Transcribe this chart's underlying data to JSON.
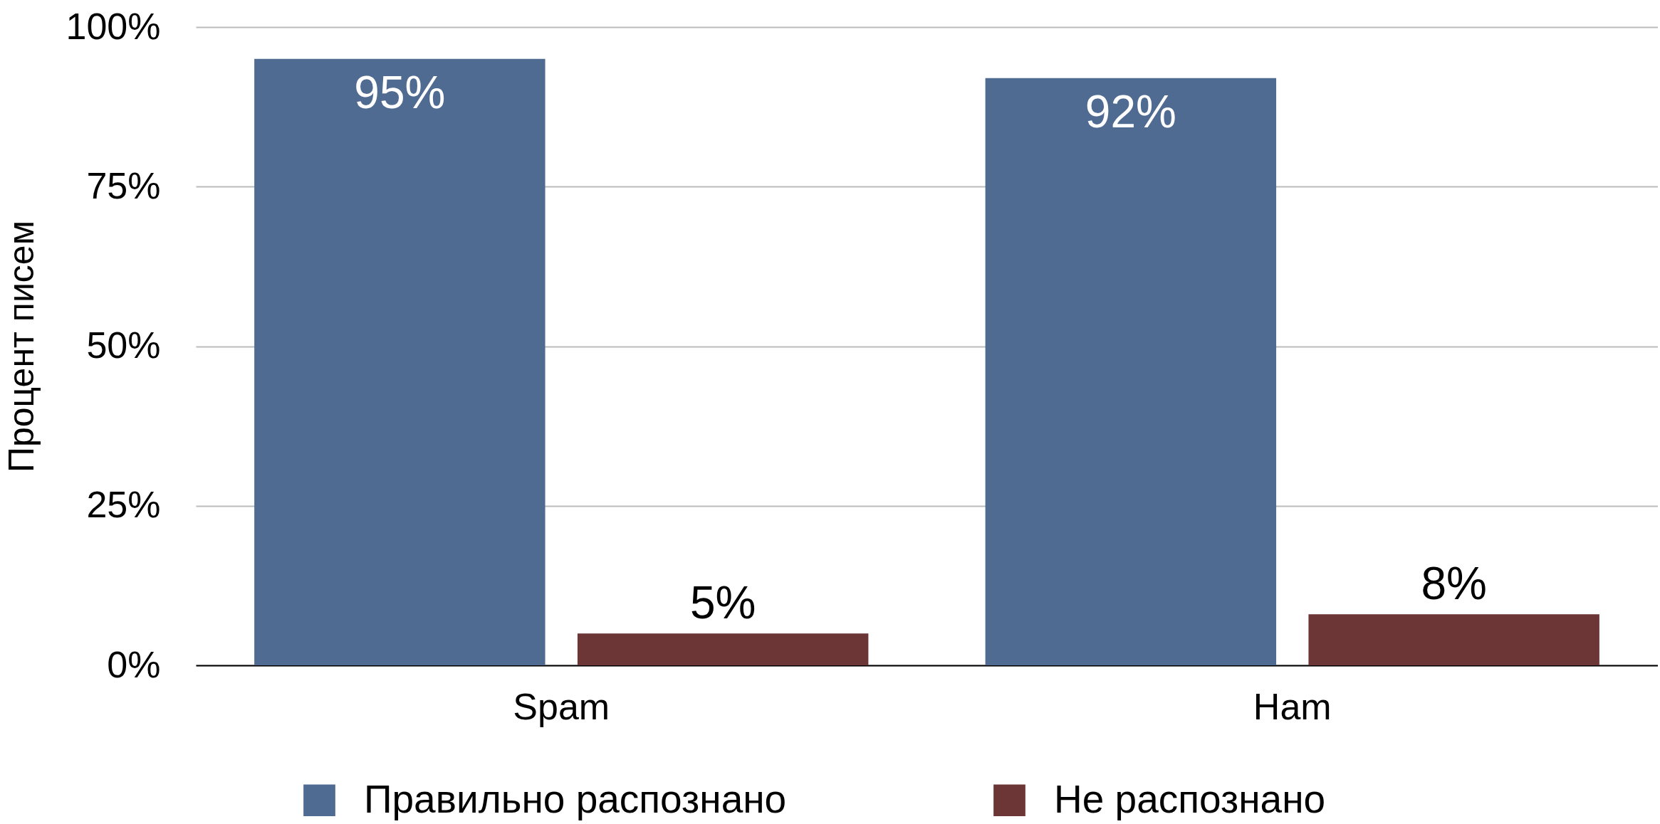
{
  "chart_data": {
    "type": "bar",
    "ylabel": "Процент писем",
    "categories": [
      "Spam",
      "Ham"
    ],
    "series": [
      {
        "name": "Правильно распознано",
        "color": "#4f6b91",
        "values": [
          95,
          92
        ],
        "value_labels": [
          "95%",
          "92%"
        ]
      },
      {
        "name": "Не распознано",
        "color": "#6c3536",
        "values": [
          5,
          8
        ],
        "value_labels": [
          "5%",
          "8%"
        ]
      }
    ],
    "ylim": [
      0,
      100
    ],
    "yticks": [
      {
        "value": 0,
        "label": "0%"
      },
      {
        "value": 25,
        "label": "25%"
      },
      {
        "value": 50,
        "label": "50%"
      },
      {
        "value": 75,
        "label": "75%"
      },
      {
        "value": 100,
        "label": "100%"
      }
    ],
    "grid": "y",
    "legend": "bottom"
  }
}
